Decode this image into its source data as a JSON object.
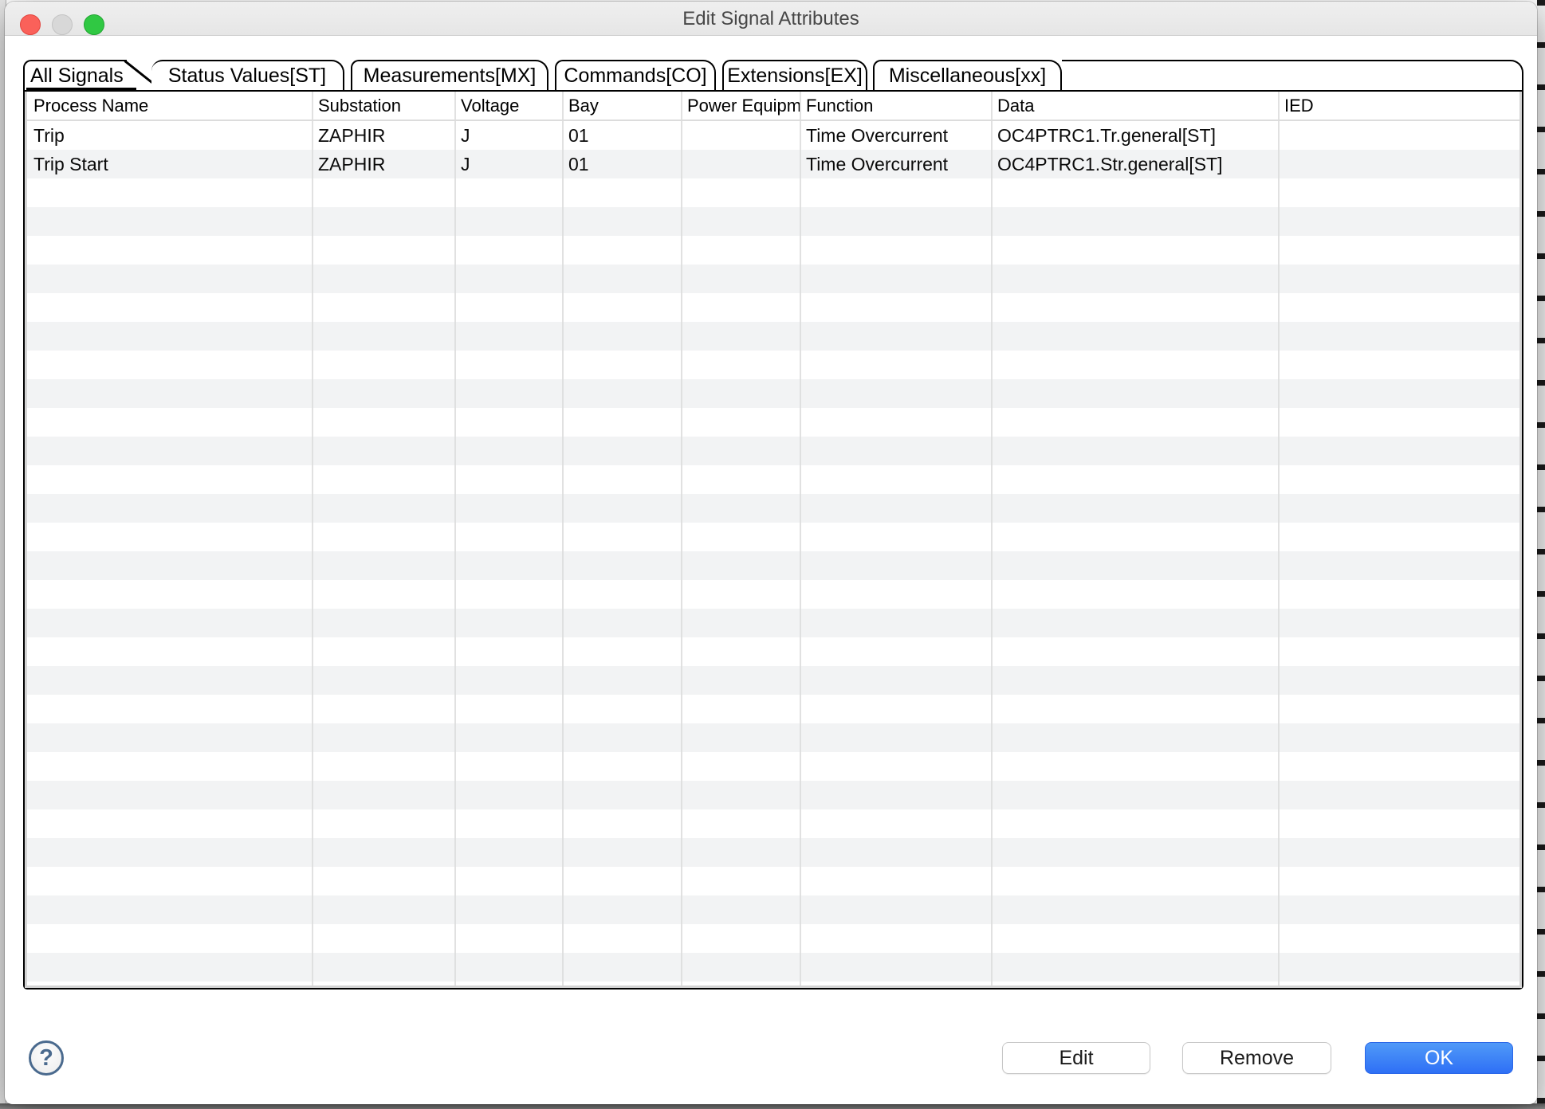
{
  "window": {
    "title": "Edit Signal Attributes"
  },
  "tabs": [
    {
      "label": "All Signals",
      "selected": true
    },
    {
      "label": "Status Values[ST]",
      "selected": false
    },
    {
      "label": "Measurements[MX]",
      "selected": false
    },
    {
      "label": "Commands[CO]",
      "selected": false
    },
    {
      "label": "Extensions[EX]",
      "selected": false
    },
    {
      "label": "Miscellaneous[xx]",
      "selected": false
    }
  ],
  "table": {
    "columns": [
      "Process Name",
      "Substation",
      "Voltage",
      "Bay",
      "Power Equipm",
      "Function",
      "Data",
      "IED"
    ],
    "rows": [
      {
        "cells": [
          "Trip",
          "ZAPHIR",
          "J",
          "01",
          "",
          "Time Overcurrent",
          "OC4PTRC1.Tr.general[ST]",
          ""
        ]
      },
      {
        "cells": [
          "Trip Start",
          "ZAPHIR",
          "J",
          "01",
          "",
          "Time Overcurrent",
          "OC4PTRC1.Str.general[ST]",
          ""
        ]
      }
    ]
  },
  "buttons": {
    "help": "?",
    "edit": "Edit",
    "remove": "Remove",
    "ok": "OK"
  },
  "colors": {
    "ok_button_blue": "#3478f6",
    "row_stripe": "#f2f3f4",
    "help_icon_blue": "#4a6a8e",
    "close_red": "#fa615a",
    "minimize_gray": "#d8d8d8",
    "zoom_green": "#30c843",
    "tab_outline": "#000000",
    "titlebar_gray": "#ececec"
  }
}
